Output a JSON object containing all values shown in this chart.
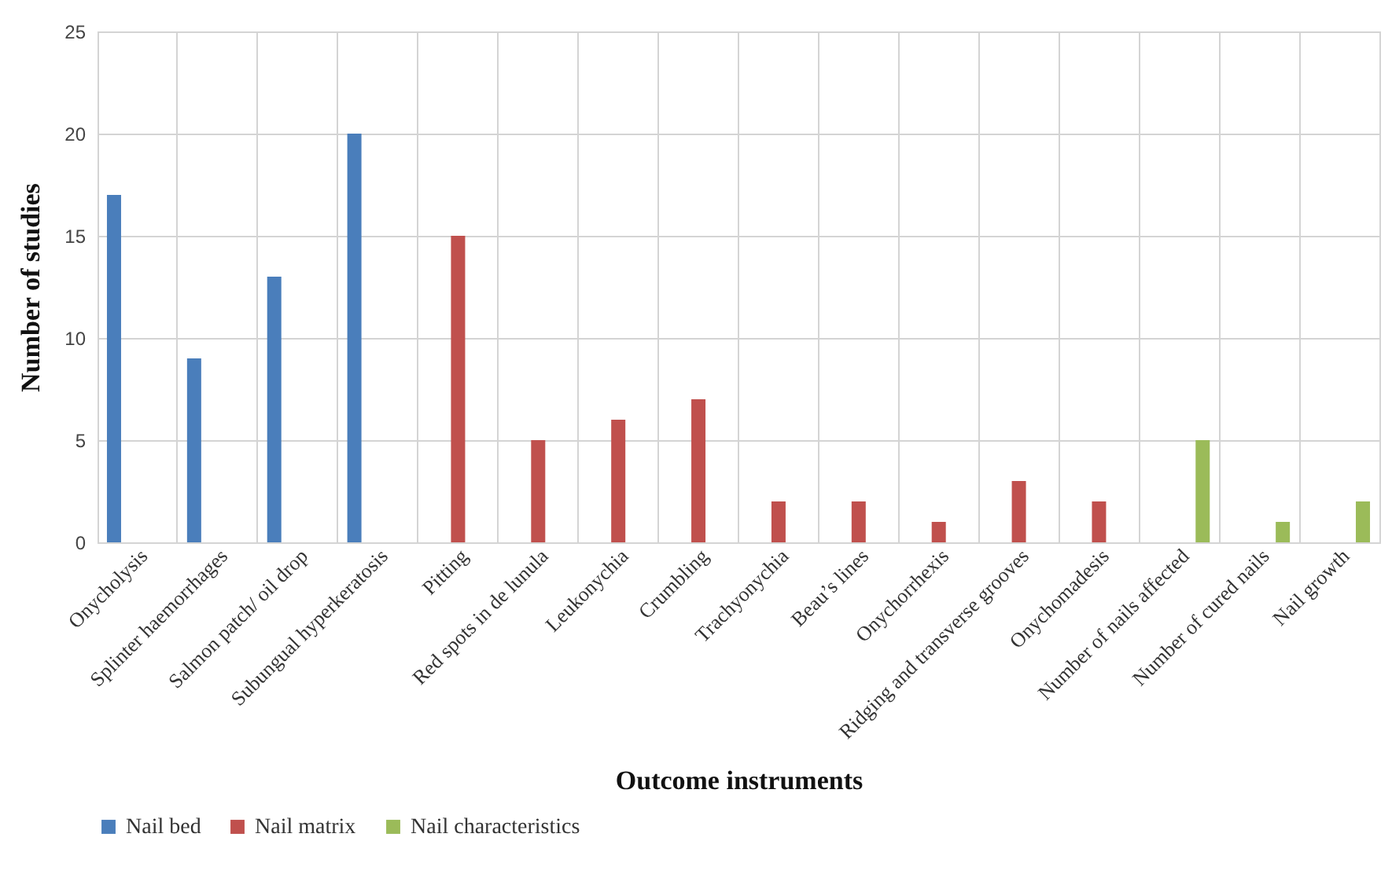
{
  "chart_data": {
    "type": "bar",
    "xlabel": "Outcome instruments",
    "ylabel": "Number of studies",
    "categories": [
      "Onycholysis",
      "Splinter haemorrhages",
      "Salmon patch/ oil drop",
      "Subungual hyperkeratosis",
      "Pitting",
      "Red spots in de lunula",
      "Leukonychia",
      "Crumbling",
      "Trachyonychia",
      "Beau’s lines",
      "Onychorrhexis",
      "Ridging and transverse grooves",
      "Onychomadesis",
      "Number of nails affected",
      "Number of cured nails",
      "Nail growth"
    ],
    "series": [
      {
        "name": "Nail bed",
        "color": "#4a7ebb",
        "values": [
          17,
          9,
          13,
          20,
          null,
          null,
          null,
          null,
          null,
          null,
          null,
          null,
          null,
          null,
          null,
          null
        ]
      },
      {
        "name": "Nail matrix",
        "color": "#c0504d",
        "values": [
          null,
          null,
          null,
          null,
          15,
          5,
          6,
          7,
          2,
          2,
          1,
          3,
          2,
          null,
          null,
          null
        ]
      },
      {
        "name": "Nail characteristics",
        "color": "#9bbb59",
        "values": [
          null,
          null,
          null,
          null,
          null,
          null,
          null,
          null,
          null,
          null,
          null,
          null,
          null,
          5,
          1,
          2
        ]
      }
    ],
    "ylim": [
      0,
      25
    ],
    "yticks": [
      0,
      5,
      10,
      15,
      20,
      25
    ],
    "grid": true,
    "legend": "bottom"
  }
}
